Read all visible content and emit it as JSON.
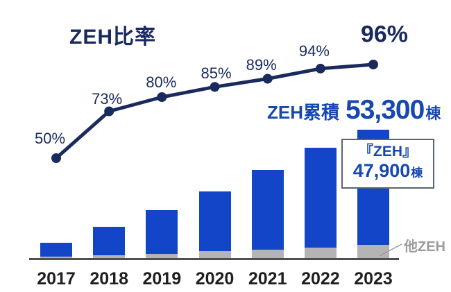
{
  "title": "ZEH比率",
  "cumulative": {
    "prefix": "ZEH累積",
    "value": "53,300",
    "unit": "棟"
  },
  "callout": {
    "line1": "『ZEH』",
    "value": "47,900",
    "unit": "棟"
  },
  "other_label": "他ZEH",
  "colors": {
    "navy": "#1a2a5e",
    "bar_blue": "#1245c7",
    "bar_gray": "#b4b4b6",
    "text_blue": "#1747b0",
    "gray_label": "#9b9b9b",
    "axis": "#4f4f4f",
    "year_text": "#1f1f1f"
  },
  "chart_data": {
    "type": "combo",
    "categories": [
      "2017",
      "2018",
      "2019",
      "2020",
      "2021",
      "2022",
      "2023"
    ],
    "line": {
      "name": "ZEH比率",
      "unit": "%",
      "values": [
        50,
        73,
        80,
        85,
        89,
        94,
        96
      ],
      "labels": [
        "50%",
        "73%",
        "80%",
        "85%",
        "89%",
        "94%",
        "96%"
      ]
    },
    "bars": {
      "stacked": true,
      "unit": "棟",
      "series": [
        {
          "name": "『ZEH』",
          "values": [
            5700,
            11800,
            18100,
            24800,
            33100,
            41500,
            47900
          ]
        },
        {
          "name": "他ZEH",
          "values": [
            600,
            1200,
            1800,
            2900,
            3500,
            4300,
            5400
          ]
        }
      ],
      "totals": [
        6300,
        13000,
        19900,
        27700,
        36600,
        45800,
        53300
      ]
    },
    "annotations": [
      {
        "text": "ZEH累積 53,300棟"
      },
      {
        "text": "『ZEH』 47,900棟"
      },
      {
        "text": "他ZEH"
      }
    ],
    "legend_position": "none",
    "grid": false
  }
}
